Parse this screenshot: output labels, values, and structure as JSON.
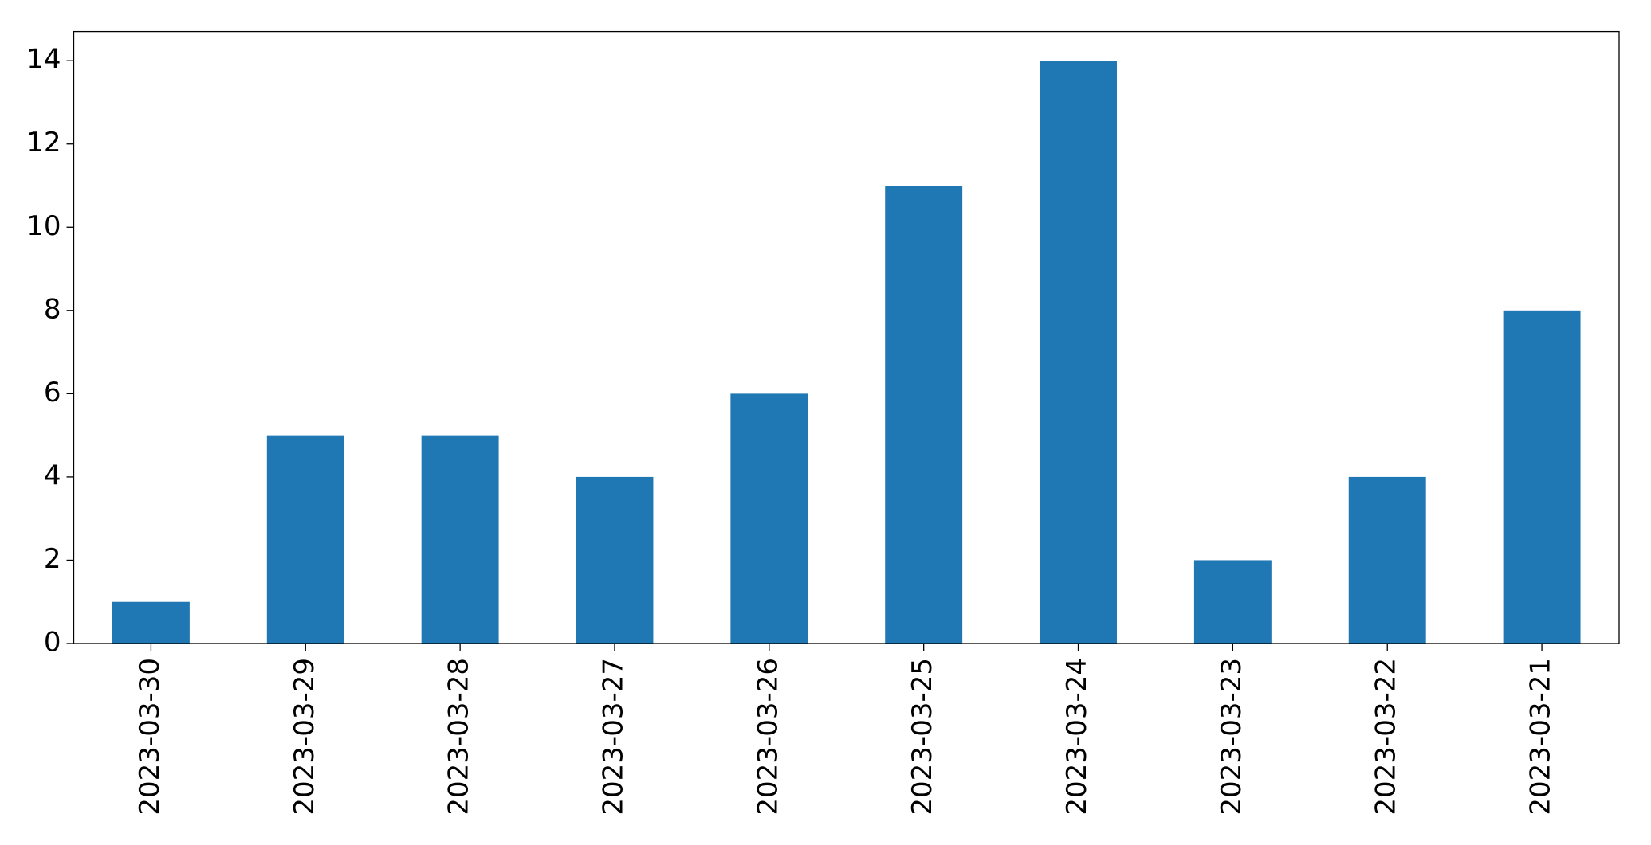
{
  "chart_data": {
    "type": "bar",
    "categories": [
      "2023-03-30",
      "2023-03-29",
      "2023-03-28",
      "2023-03-27",
      "2023-03-26",
      "2023-03-25",
      "2023-03-24",
      "2023-03-23",
      "2023-03-22",
      "2023-03-21"
    ],
    "values": [
      1,
      5,
      5,
      4,
      6,
      11,
      14,
      2,
      4,
      8
    ],
    "color": "#1f77b4",
    "ylim": [
      0,
      14.7
    ],
    "yticks": [
      0,
      2,
      4,
      6,
      8,
      10,
      12,
      14
    ],
    "grid": false
  }
}
